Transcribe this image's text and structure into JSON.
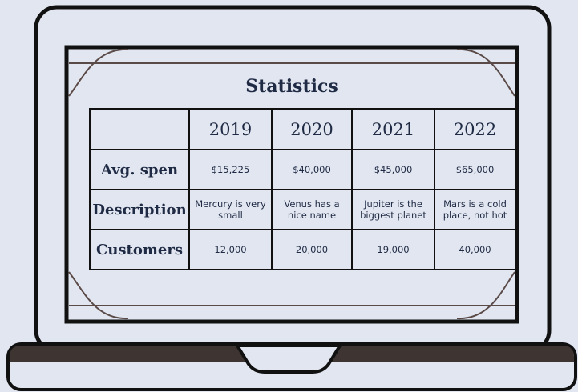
{
  "title": "Statistics",
  "table": {
    "columns": [
      "2019",
      "2020",
      "2021",
      "2022"
    ],
    "rows": [
      {
        "label": "Avg. spen",
        "cells": [
          "$15,225",
          "$40,000",
          "$45,000",
          "$65,000"
        ]
      },
      {
        "label": "Description",
        "cells": [
          "Mercury is very small",
          "Venus has a nice name",
          "Jupiter is the biggest planet",
          "Mars is a cold place, not hot"
        ]
      },
      {
        "label": "Customers",
        "cells": [
          "12,000",
          "20,000",
          "19,000",
          "40,000"
        ]
      }
    ]
  }
}
